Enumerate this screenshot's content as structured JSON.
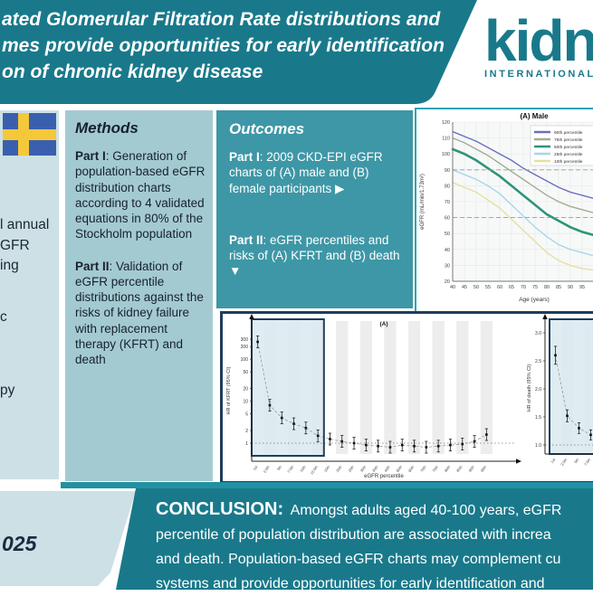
{
  "colors": {
    "teal_dark": "#19798b",
    "teal_mid": "#3e97a6",
    "teal_light": "#a4cad1",
    "panel_blue": "#cde0e5",
    "top_chart_border": "#2ba4b6",
    "bottom_panel_border": "#1e3d5c",
    "highlight_fill": "#dcebf1",
    "flag_blue": "#3a5fae",
    "flag_yellow": "#f5c83b"
  },
  "header": {
    "title_lines": [
      "ated Glomerular Filtration Rate distributions and",
      "mes provide opportunities for early identification",
      "on of chronic kidney disease"
    ],
    "logo": {
      "name": "kidney",
      "subtitle": "INTERNATIONAL"
    }
  },
  "left_panel": {
    "flag_icon": "sweden-flag",
    "fragments": [
      "l annual",
      "GFR",
      "ing",
      "c",
      "py"
    ]
  },
  "methods": {
    "heading": "Methods",
    "part1_label": "Part I",
    "part1_text": ": Generation of population-based eGFR distribution charts according to 4 validated equations in 80% of the Stockholm population",
    "part2_label": "Part II",
    "part2_text": ": Validation of eGFR percentile distributions against the risks of kidney failure with replacement therapy (KFRT) and death"
  },
  "outcomes": {
    "heading": "Outcomes",
    "part1_label": "Part I",
    "part1_text": ": 2009 CKD-EPI eGFR charts of (A) male and (B) female participants ▶",
    "part2_label": "Part II",
    "part2_text": ": eGFR percentiles and risks of (A) KFRT and (B) death ▼"
  },
  "citation_fragment": "025",
  "conclusion": {
    "label": "CONCLUSION:",
    "lines": [
      " Amongst adults aged 40-100 years, eGFR",
      "percentile of population distribution are associated with increa",
      "and death. Population-based eGFR charts may complement cu",
      "systems and provide opportunities for early identification and"
    ]
  },
  "chart_data": [
    {
      "type": "line",
      "title": "(A) Male",
      "xlabel": "Age (years)",
      "ylabel": "eGFR (mL/min/1.73m²)",
      "xlim": [
        40,
        100
      ],
      "ylim": [
        20,
        120
      ],
      "xticks": [
        40,
        45,
        50,
        55,
        60,
        65,
        70,
        75,
        80,
        85,
        90,
        95
      ],
      "yticks": [
        20,
        30,
        40,
        50,
        60,
        70,
        80,
        90,
        100,
        110,
        120
      ],
      "grid": true,
      "legend_position": "top-right",
      "ref_lines": [
        90,
        60
      ],
      "x": [
        40,
        45,
        50,
        55,
        60,
        65,
        70,
        75,
        80,
        85,
        90,
        95,
        100
      ],
      "series": [
        {
          "name": "90th percentile",
          "color": "#6b6fc0",
          "width": 1.4,
          "values": [
            114,
            111,
            108,
            104,
            100,
            96,
            91,
            87,
            83,
            79,
            76,
            74,
            72
          ]
        },
        {
          "name": "75th percentile",
          "color": "#a6aa93",
          "width": 1.4,
          "values": [
            110,
            107,
            103,
            99,
            94,
            89,
            84,
            79,
            74,
            70,
            67,
            65,
            63
          ]
        },
        {
          "name": "50th percentile",
          "color": "#2e9478",
          "width": 2.6,
          "values": [
            103,
            100,
            96,
            91,
            86,
            80,
            74,
            68,
            62,
            58,
            54,
            51,
            49
          ]
        },
        {
          "name": "25th percentile",
          "color": "#a8d6e9",
          "width": 1.4,
          "values": [
            90,
            87,
            84,
            80,
            75,
            68,
            61,
            54,
            48,
            43,
            40,
            38,
            36
          ]
        },
        {
          "name": "10th percentile",
          "color": "#e5e0a2",
          "width": 1.4,
          "values": [
            82,
            79,
            76,
            71,
            66,
            59,
            52,
            45,
            38,
            33,
            30,
            28,
            27
          ]
        }
      ]
    },
    {
      "type": "scatter",
      "title": "(A)",
      "xlabel": "eGFR percentile",
      "ylabel": "HR of KFRT (95% CI)",
      "yscale": "log",
      "yticks": [
        300,
        200,
        100,
        50,
        20,
        10,
        5,
        2,
        1
      ],
      "ref_line": 1,
      "highlight_first_n": 6,
      "categories": [
        "1st",
        "2.5th",
        "5th",
        "7.5th",
        "10th",
        "12.5th",
        "15th",
        "20th",
        "25th",
        "30th",
        "35th",
        "40th",
        "60th",
        "65th",
        "70th",
        "75th",
        "80th",
        "85th",
        "90th",
        "95th"
      ],
      "values": [
        260,
        8,
        4,
        2.9,
        2.3,
        1.5,
        1.25,
        1.1,
        1.0,
        0.9,
        0.85,
        0.8,
        0.9,
        0.85,
        0.8,
        0.85,
        0.9,
        0.95,
        1.1,
        1.6
      ],
      "ci_span_factor": 1.38
    },
    {
      "type": "scatter",
      "title": "(B)",
      "xlabel": "eGFR percentile",
      "ylabel": "HR of death (95% CI)",
      "yscale": "linear",
      "ylim": [
        1.0,
        3.1
      ],
      "yticks": [
        3.0,
        2.5,
        2.0,
        1.5,
        1.0
      ],
      "ref_line": 1,
      "highlight_first_n": 6,
      "values": [
        2.6,
        1.52,
        1.3,
        1.18,
        1.12,
        1.06,
        1.02,
        1.0
      ]
    }
  ]
}
